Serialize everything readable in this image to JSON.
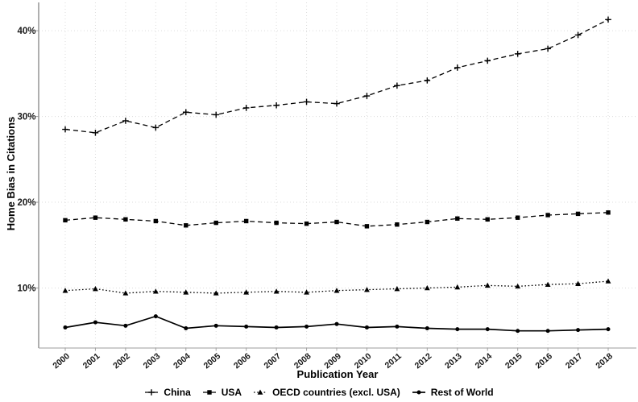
{
  "chart_data": {
    "type": "line",
    "title": "",
    "xlabel": "Publication Year",
    "ylabel": "Home Bias in Citations",
    "x": [
      2000,
      2001,
      2002,
      2003,
      2004,
      2005,
      2006,
      2007,
      2008,
      2009,
      2010,
      2011,
      2012,
      2013,
      2014,
      2015,
      2016,
      2017,
      2018
    ],
    "yticks": [
      {
        "value": 10,
        "label": "10%"
      },
      {
        "value": 20,
        "label": "20%"
      },
      {
        "value": 30,
        "label": "30%"
      },
      {
        "value": 40,
        "label": "40%"
      }
    ],
    "ylim": [
      3.0,
      43.3
    ],
    "grid": "dotted-light",
    "legend_position": "bottom",
    "series": [
      {
        "name": "China",
        "line": "dashed",
        "marker": "plus",
        "color": "#000000",
        "values": [
          28.5,
          28.1,
          29.5,
          28.7,
          30.5,
          30.2,
          31.0,
          31.3,
          31.7,
          31.5,
          32.4,
          33.6,
          34.2,
          35.7,
          36.5,
          37.3,
          37.9,
          39.5,
          41.3
        ]
      },
      {
        "name": "USA",
        "line": "dashed",
        "marker": "square",
        "color": "#000000",
        "values": [
          17.9,
          18.2,
          18.0,
          17.8,
          17.3,
          17.6,
          17.8,
          17.6,
          17.5,
          17.7,
          17.2,
          17.4,
          17.7,
          18.1,
          18.0,
          18.2,
          18.5,
          18.65,
          18.8
        ]
      },
      {
        "name": "OECD countries (excl. USA)",
        "line": "dotted",
        "marker": "triangle",
        "color": "#000000",
        "values": [
          9.7,
          9.9,
          9.4,
          9.6,
          9.5,
          9.4,
          9.5,
          9.6,
          9.5,
          9.7,
          9.8,
          9.9,
          10.0,
          10.1,
          10.3,
          10.2,
          10.4,
          10.5,
          10.8
        ]
      },
      {
        "name": "Rest of World",
        "line": "solid",
        "marker": "circle",
        "color": "#000000",
        "values": [
          5.4,
          6.0,
          5.6,
          6.7,
          5.3,
          5.6,
          5.5,
          5.4,
          5.5,
          5.8,
          5.4,
          5.5,
          5.3,
          5.2,
          5.2,
          5.0,
          5.0,
          5.1,
          5.2
        ]
      }
    ]
  }
}
